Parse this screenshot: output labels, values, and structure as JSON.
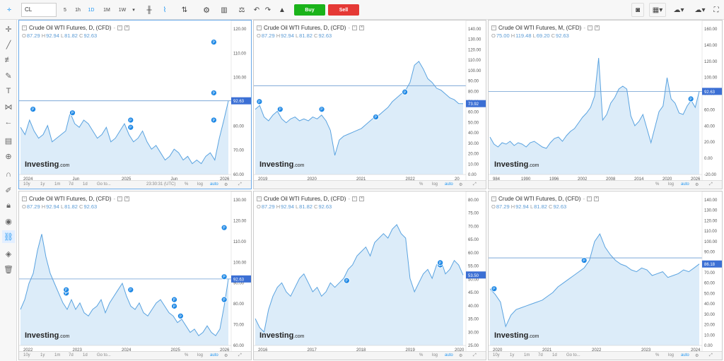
{
  "toolbar": {
    "symbol": "CL",
    "intervals": [
      "5",
      "1h",
      "1D",
      "1M",
      "1W"
    ],
    "active_interval": "1D",
    "buy_label": "Buy",
    "sell_label": "Sell",
    "colors": {
      "buy": "#1ab31a",
      "sell": "#e53935",
      "accent": "#2196f3"
    }
  },
  "sidebar": {
    "icons": [
      "crosshair-icon",
      "trend-line-icon",
      "fib-icon",
      "brush-icon",
      "text-icon",
      "pattern-icon",
      "arrow-icon",
      "measure-icon",
      "zoom-icon",
      "magnet-icon",
      "lock-drawings-icon",
      "lock-icon",
      "eye-icon",
      "link-icon",
      "layers-icon",
      "trash-icon"
    ],
    "active": "link-icon"
  },
  "panels": [
    {
      "title": "Crude Oil WTI Futures, D, (CFD)",
      "ohlc": {
        "o": "87.29",
        "h": "92.94",
        "l": "81.82",
        "c": "92.63"
      },
      "price_label": "92.63",
      "x_ticks": [
        "2024",
        "Jun",
        "2025",
        "Jun",
        "2026"
      ],
      "y_ticks": [
        "120.00",
        "110.00",
        "100.00",
        "90.00",
        "80.00",
        "70.00",
        "60.00"
      ],
      "ylim": [
        52,
        126
      ],
      "hline": 92.63,
      "series": [
        78,
        74,
        82,
        76,
        72,
        74,
        79,
        70,
        72,
        74,
        76,
        86,
        80,
        78,
        82,
        80,
        76,
        72,
        74,
        78,
        70,
        72,
        76,
        80,
        74,
        70,
        72,
        76,
        70,
        66,
        68,
        64,
        60,
        62,
        66,
        64,
        60,
        62,
        58,
        60,
        58,
        62,
        64,
        60,
        72,
        82,
        92.63
      ],
      "markers": [
        [
          0.06,
          88
        ],
        [
          0.25,
          86
        ],
        [
          0.53,
          78
        ],
        [
          0.53,
          82
        ],
        [
          0.93,
          82
        ],
        [
          0.93,
          97
        ],
        [
          0.93,
          125
        ]
      ],
      "bottom_bar": [
        "10y",
        "1y",
        "1m",
        "7d",
        "1d",
        "Go to...",
        "23:30:31 (UTC)",
        "%",
        "log",
        "auto"
      ]
    },
    {
      "title": "Crude Oil WTI Futures, D, (CFD)",
      "ohlc": {
        "o": "87.29",
        "h": "92.94",
        "l": "81.82",
        "c": "92.63"
      },
      "price_label": "73.92",
      "x_ticks": [
        "2019",
        "2020",
        "2021",
        "2022",
        "20"
      ],
      "y_ticks": [
        "140.00",
        "130.00",
        "120.00",
        "110.00",
        "100.00",
        "90.00",
        "80.00",
        "70.00",
        "60.00",
        "50.00",
        "40.00",
        "30.00",
        "20.00",
        "10.00",
        "0.00"
      ],
      "ylim": [
        0,
        140
      ],
      "hline": 92.63,
      "series": [
        68,
        72,
        60,
        56,
        62,
        66,
        58,
        54,
        58,
        60,
        56,
        58,
        56,
        60,
        58,
        62,
        56,
        46,
        20,
        36,
        40,
        42,
        44,
        46,
        48,
        52,
        56,
        60,
        62,
        66,
        70,
        76,
        80,
        84,
        88,
        96,
        114,
        118,
        110,
        100,
        96,
        90,
        88,
        84,
        80,
        78,
        74,
        73.92
      ],
      "markers": [
        [
          0.02,
          76
        ],
        [
          0.12,
          68
        ],
        [
          0.32,
          68
        ],
        [
          0.58,
          60
        ],
        [
          0.72,
          86
        ]
      ],
      "bottom_bar": [
        "%",
        "log",
        "auto"
      ]
    },
    {
      "title": "Crude Oil WTI Futures, M, (CFD)",
      "ohlc": {
        "o": "75.00",
        "h": "119.48",
        "l": "69.20",
        "c": "92.63"
      },
      "price_label": "92.63",
      "x_ticks": [
        "984",
        "1990",
        "1996",
        "2002",
        "2008",
        "2014",
        "2020",
        "2026"
      ],
      "y_ticks": [
        "160.00",
        "140.00",
        "120.00",
        "100.00",
        "80.00",
        "60.00",
        "40.00",
        "20.00",
        "0.00",
        "-20.00"
      ],
      "ylim": [
        -25,
        165
      ],
      "hline": 92.63,
      "series": [
        28,
        18,
        14,
        20,
        18,
        22,
        16,
        20,
        18,
        14,
        20,
        22,
        18,
        14,
        12,
        20,
        26,
        28,
        22,
        30,
        36,
        40,
        48,
        56,
        62,
        70,
        86,
        140,
        52,
        60,
        76,
        84,
        96,
        100,
        96,
        58,
        44,
        50,
        60,
        40,
        20,
        42,
        64,
        72,
        112,
        82,
        76,
        62,
        60,
        72,
        80,
        70,
        92.63
      ],
      "markers": [
        [
          0.96,
          82
        ]
      ],
      "bottom_bar": [
        "%",
        "log",
        "auto"
      ]
    },
    {
      "title": "Crude Oil WTI Futures, D, (CFD)",
      "ohlc": {
        "o": "87.29",
        "h": "92.94",
        "l": "81.82",
        "c": "92.63"
      },
      "price_label": "92.63",
      "x_ticks": [
        "2022",
        "2023",
        "2024",
        "2025",
        "2026"
      ],
      "y_ticks": [
        "130.00",
        "120.00",
        "110.00",
        "100.00",
        "90.00",
        "80.00",
        "70.00",
        "60.00"
      ],
      "ylim": [
        52,
        134
      ],
      "hline": 92.63,
      "series": [
        74,
        80,
        90,
        96,
        110,
        120,
        106,
        96,
        90,
        84,
        78,
        74,
        80,
        74,
        78,
        72,
        70,
        74,
        76,
        80,
        72,
        78,
        82,
        86,
        90,
        82,
        76,
        74,
        78,
        72,
        70,
        74,
        78,
        80,
        76,
        72,
        70,
        66,
        68,
        64,
        60,
        62,
        58,
        60,
        64,
        60,
        58,
        62,
        76,
        92.63
      ],
      "markers": [
        [
          0.22,
          84
        ],
        [
          0.22,
          86
        ],
        [
          0.53,
          86
        ],
        [
          0.74,
          80
        ],
        [
          0.74,
          76
        ],
        [
          0.77,
          70
        ],
        [
          0.98,
          80
        ],
        [
          0.98,
          94
        ],
        [
          0.98,
          124
        ]
      ],
      "bottom_bar": [
        "10y",
        "1y",
        "1m",
        "7d",
        "1d",
        "Go to...",
        "%",
        "log",
        "auto"
      ]
    },
    {
      "title": "Crude Oil WTI Futures, D, (CFD)",
      "ohlc": {
        "o": "87.29",
        "h": "92.94",
        "l": "81.82",
        "c": "92.63"
      },
      "price_label": "53.50",
      "x_ticks": [
        "2016",
        "2017",
        "2018",
        "2019",
        "2020"
      ],
      "y_ticks": [
        "80.00",
        "75.00",
        "70.00",
        "65.00",
        "60.00",
        "55.00",
        "50.00",
        "45.00",
        "40.00",
        "35.00",
        "30.00",
        "25.00"
      ],
      "ylim": [
        22,
        82
      ],
      "hline": 0,
      "series": [
        34,
        30,
        28,
        38,
        44,
        48,
        50,
        46,
        44,
        48,
        52,
        54,
        50,
        46,
        48,
        44,
        46,
        50,
        48,
        50,
        52,
        56,
        58,
        62,
        64,
        66,
        62,
        68,
        70,
        72,
        70,
        74,
        76,
        72,
        70,
        52,
        46,
        50,
        54,
        56,
        52,
        58,
        60,
        54,
        56,
        60,
        58,
        53.5
      ],
      "markers": [
        [
          0.44,
          51
        ],
        [
          0.89,
          58
        ],
        [
          0.89,
          59
        ]
      ],
      "bottom_bar": [
        "%",
        "log",
        "auto"
      ]
    },
    {
      "title": "Crude Oil WTI Futures, D, (CFD)",
      "ohlc": {
        "o": "87.29",
        "h": "92.94",
        "l": "81.82",
        "c": "92.63"
      },
      "price_label": "86.18",
      "x_ticks": [
        "2020",
        "2021",
        "2022",
        "2023",
        "2024"
      ],
      "y_ticks": [
        "140.00",
        "130.00",
        "120.00",
        "110.00",
        "100.00",
        "90.00",
        "80.00",
        "70.00",
        "60.00",
        "50.00",
        "40.00",
        "30.00",
        "20.00",
        "10.00",
        "0.00"
      ],
      "ylim": [
        0,
        142
      ],
      "hline": 92.63,
      "series": [
        60,
        54,
        46,
        20,
        32,
        38,
        40,
        42,
        44,
        46,
        48,
        52,
        56,
        62,
        66,
        70,
        74,
        78,
        82,
        90,
        110,
        118,
        104,
        96,
        90,
        86,
        84,
        80,
        78,
        82,
        80,
        74,
        76,
        78,
        72,
        74,
        76,
        80,
        78,
        82,
        86.18
      ],
      "markers": [
        [
          0.02,
          60
        ],
        [
          0.45,
          90
        ]
      ],
      "bottom_bar": [
        "10y",
        "1y",
        "1m",
        "7d",
        "1d",
        "Go to...",
        "%",
        "log",
        "auto"
      ]
    }
  ],
  "logo": {
    "main": "Investing",
    "suffix": ".com"
  }
}
